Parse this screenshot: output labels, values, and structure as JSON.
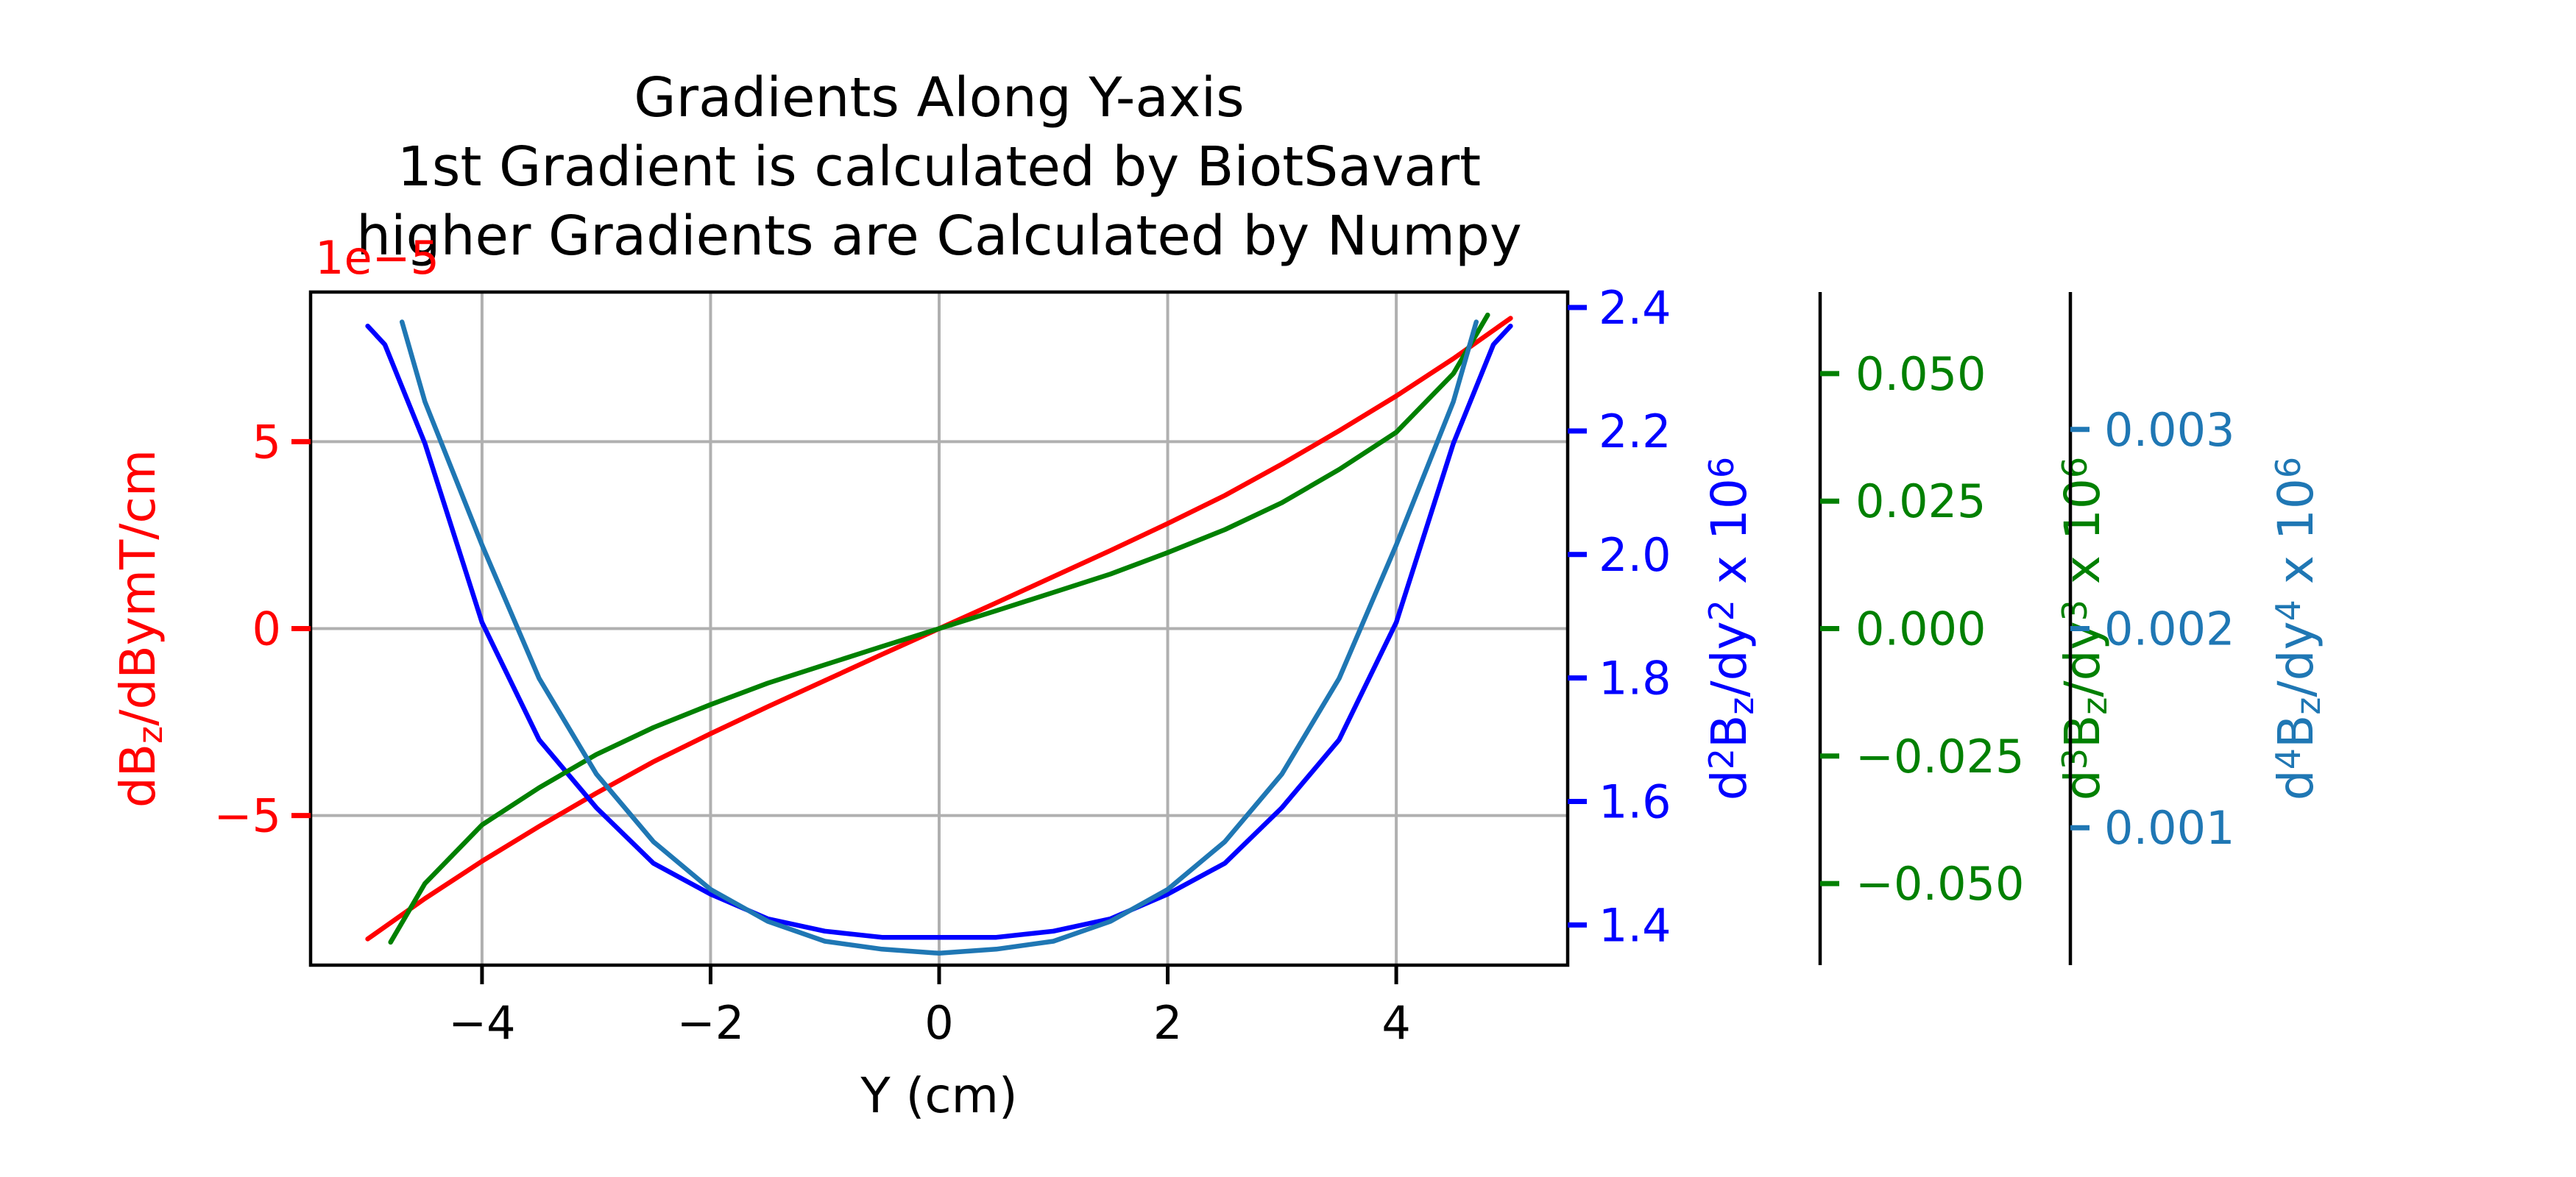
{
  "chart_data": {
    "type": "line",
    "title": "Gradients Along Y-axis\n1st Gradient is calculated by BiotSavart\nhigher Gradients are Calculated by Numpy",
    "title_lines": [
      "Gradients Along Y-axis",
      "1st Gradient is calculated by BiotSavart",
      "higher Gradients are Calculated by Numpy"
    ],
    "grid": true,
    "xlabel": "Y (cm)",
    "xlim": [
      -5.5,
      5.5
    ],
    "xticks": [
      -4,
      -2,
      0,
      2,
      4
    ],
    "xtick_labels": [
      "−4",
      "−2",
      "0",
      "2",
      "4"
    ],
    "axes": [
      {
        "id": "a1",
        "side": "left",
        "color": "#ff0000",
        "label_parts": [
          [
            "dB",
            ""
          ],
          [
            "z",
            "sub"
          ],
          [
            "/dBymT/cm",
            ""
          ]
        ],
        "ylim": [
          -9,
          9
        ],
        "ticks": [
          -5,
          0,
          5
        ],
        "tick_labels": [
          "−5",
          "0",
          "5"
        ],
        "offset_text": "1e−5"
      },
      {
        "id": "a2",
        "side": "right",
        "color": "#0000ff",
        "label_parts": [
          [
            "d",
            ""
          ],
          [
            "2",
            "sup"
          ],
          [
            "B",
            ""
          ],
          [
            "z",
            "sub"
          ],
          [
            "/dy",
            ""
          ],
          [
            "2",
            "sup"
          ],
          [
            "  x 10",
            ""
          ],
          [
            "6",
            "sup"
          ]
        ],
        "ylim": [
          1.335,
          2.425
        ],
        "ticks": [
          1.4,
          1.6,
          1.8,
          2.0,
          2.2,
          2.4
        ],
        "tick_labels": [
          "1.4",
          "1.6",
          "1.8",
          "2.0",
          "2.2",
          "2.4"
        ]
      },
      {
        "id": "a3",
        "side": "right",
        "color": "#008000",
        "label_parts": [
          [
            "d",
            ""
          ],
          [
            "3",
            "sup"
          ],
          [
            "B",
            ""
          ],
          [
            "z",
            "sub"
          ],
          [
            "/dy",
            ""
          ],
          [
            "3",
            "sup"
          ],
          [
            "  x 10",
            ""
          ],
          [
            "6",
            "sup"
          ]
        ],
        "ylim": [
          -0.066,
          0.066
        ],
        "ticks": [
          -0.05,
          -0.025,
          0.0,
          0.025,
          0.05
        ],
        "tick_labels": [
          "−0.050",
          "−0.025",
          "0.000",
          "0.025",
          "0.050"
        ]
      },
      {
        "id": "a4",
        "side": "right",
        "color": "#1f77b4",
        "label_parts": [
          [
            "d",
            ""
          ],
          [
            "4",
            "sup"
          ],
          [
            "B",
            ""
          ],
          [
            "z",
            "sub"
          ],
          [
            "/dy",
            ""
          ],
          [
            "4",
            "sup"
          ],
          [
            "  x 10",
            ""
          ],
          [
            "6",
            "sup"
          ]
        ],
        "ylim": [
          0.00031,
          0.00369
        ],
        "ticks": [
          0.001,
          0.002,
          0.003
        ],
        "tick_labels": [
          "0.001",
          "0.002",
          "0.003"
        ]
      }
    ],
    "series": [
      {
        "axis": "a1",
        "color": "#ff0000",
        "x": [
          -5.0,
          -4.5,
          -4.0,
          -3.5,
          -3.0,
          -2.5,
          -2.0,
          -1.5,
          -1.0,
          -0.5,
          0.0,
          0.5,
          1.0,
          1.5,
          2.0,
          2.5,
          3.0,
          3.5,
          4.0,
          4.5,
          5.0
        ],
        "y": [
          -8.3,
          -7.22,
          -6.22,
          -5.29,
          -4.4,
          -3.56,
          -2.81,
          -2.09,
          -1.39,
          -0.69,
          0.0,
          0.69,
          1.39,
          2.09,
          2.81,
          3.56,
          4.4,
          5.29,
          6.22,
          7.22,
          8.3
        ]
      },
      {
        "axis": "a2",
        "color": "#0000ff",
        "x": [
          -5.0,
          -4.85,
          -4.5,
          -4.0,
          -3.5,
          -3.0,
          -2.5,
          -2.0,
          -1.5,
          -1.0,
          -0.5,
          0.0,
          0.5,
          1.0,
          1.5,
          2.0,
          2.5,
          3.0,
          3.5,
          4.0,
          4.5,
          4.85,
          5.0
        ],
        "y": [
          2.37,
          2.34,
          2.18,
          1.89,
          1.7,
          1.59,
          1.5,
          1.45,
          1.41,
          1.39,
          1.38,
          1.38,
          1.38,
          1.39,
          1.41,
          1.45,
          1.5,
          1.59,
          1.7,
          1.89,
          2.18,
          2.34,
          2.37
        ]
      },
      {
        "axis": "a3",
        "color": "#008000",
        "x": [
          -4.8,
          -4.5,
          -4.0,
          -3.5,
          -3.0,
          -2.5,
          -2.0,
          -1.5,
          -1.0,
          -0.5,
          0.0,
          0.5,
          1.0,
          1.5,
          2.0,
          2.5,
          3.0,
          3.5,
          4.0,
          4.5,
          4.8
        ],
        "y": [
          -0.0615,
          -0.05,
          -0.0385,
          -0.0312,
          -0.0247,
          -0.0194,
          -0.0149,
          -0.0107,
          -0.0071,
          -0.0035,
          0.0,
          0.0035,
          0.0071,
          0.0107,
          0.0149,
          0.0194,
          0.0247,
          0.0312,
          0.0385,
          0.05,
          0.0615
        ]
      },
      {
        "axis": "a4",
        "color": "#1f77b4",
        "x": [
          -4.7,
          -4.5,
          -4.0,
          -3.5,
          -3.0,
          -2.5,
          -2.0,
          -1.5,
          -1.0,
          -0.5,
          0.0,
          0.5,
          1.0,
          1.5,
          2.0,
          2.5,
          3.0,
          3.5,
          4.0,
          4.5,
          4.7
        ],
        "y": [
          0.00354,
          0.00314,
          0.00242,
          0.00175,
          0.00127,
          0.00093,
          0.00069,
          0.00053,
          0.00043,
          0.00039,
          0.00037,
          0.00039,
          0.00043,
          0.00053,
          0.00069,
          0.00093,
          0.00127,
          0.00175,
          0.00242,
          0.00314,
          0.00354
        ]
      }
    ]
  }
}
